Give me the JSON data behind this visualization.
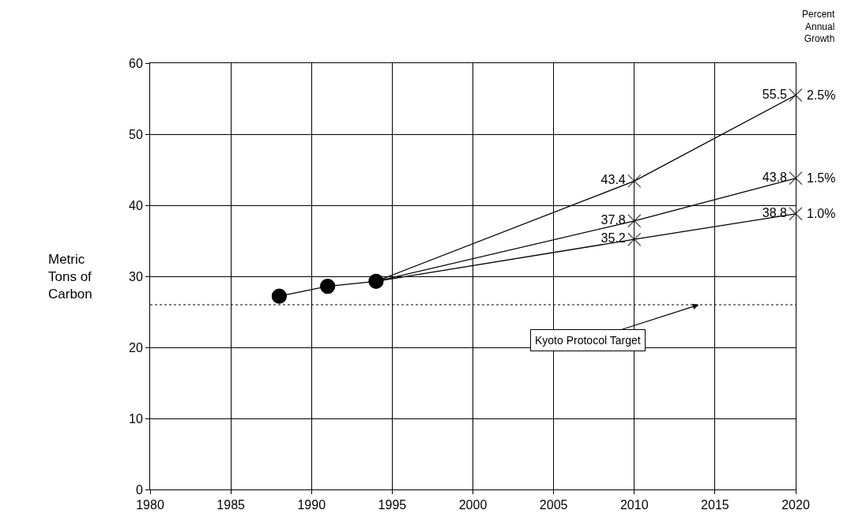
{
  "chart_data": {
    "type": "line",
    "ylabel": "Metric Tons of Carbon",
    "legend_title": "Percent Annual Growth",
    "xlim": [
      1980,
      2020
    ],
    "xticks": [
      1980,
      1985,
      1990,
      1995,
      2000,
      2005,
      2010,
      2015,
      2020
    ],
    "ylim": [
      0,
      60
    ],
    "yticks": [
      0,
      10,
      20,
      30,
      40,
      50,
      60
    ],
    "grid": true,
    "legend": false,
    "series": [
      {
        "color": "#000000",
        "marker": "circle",
        "x": [
          1988,
          1991,
          1994
        ],
        "values": [
          27.2,
          28.6,
          29.3
        ]
      },
      {
        "name": "2.5%",
        "color": "#000000",
        "marker": "cross",
        "x": [
          1994,
          2010,
          2020
        ],
        "values": [
          29.3,
          43.4,
          55.5
        ],
        "value_labels": [
          null,
          "43.4",
          "55.5"
        ]
      },
      {
        "name": "1.5%",
        "color": "#000000",
        "marker": "cross",
        "x": [
          1994,
          2010,
          2020
        ],
        "values": [
          29.3,
          37.8,
          43.8
        ],
        "value_labels": [
          null,
          "37.8",
          "43.8"
        ]
      },
      {
        "name": "1.0%",
        "color": "#000000",
        "marker": "cross",
        "x": [
          1994,
          2010,
          2020
        ],
        "values": [
          29.3,
          35.2,
          38.8
        ],
        "value_labels": [
          null,
          "35.2",
          "38.8"
        ]
      }
    ],
    "ref_lines": [
      {
        "axis": "y",
        "value": 26,
        "line_style": "dotted",
        "color": "#000000"
      }
    ],
    "annotations": [
      {
        "text": "Kyoto Protocol Target",
        "x": 2014,
        "y": 26
      }
    ]
  }
}
